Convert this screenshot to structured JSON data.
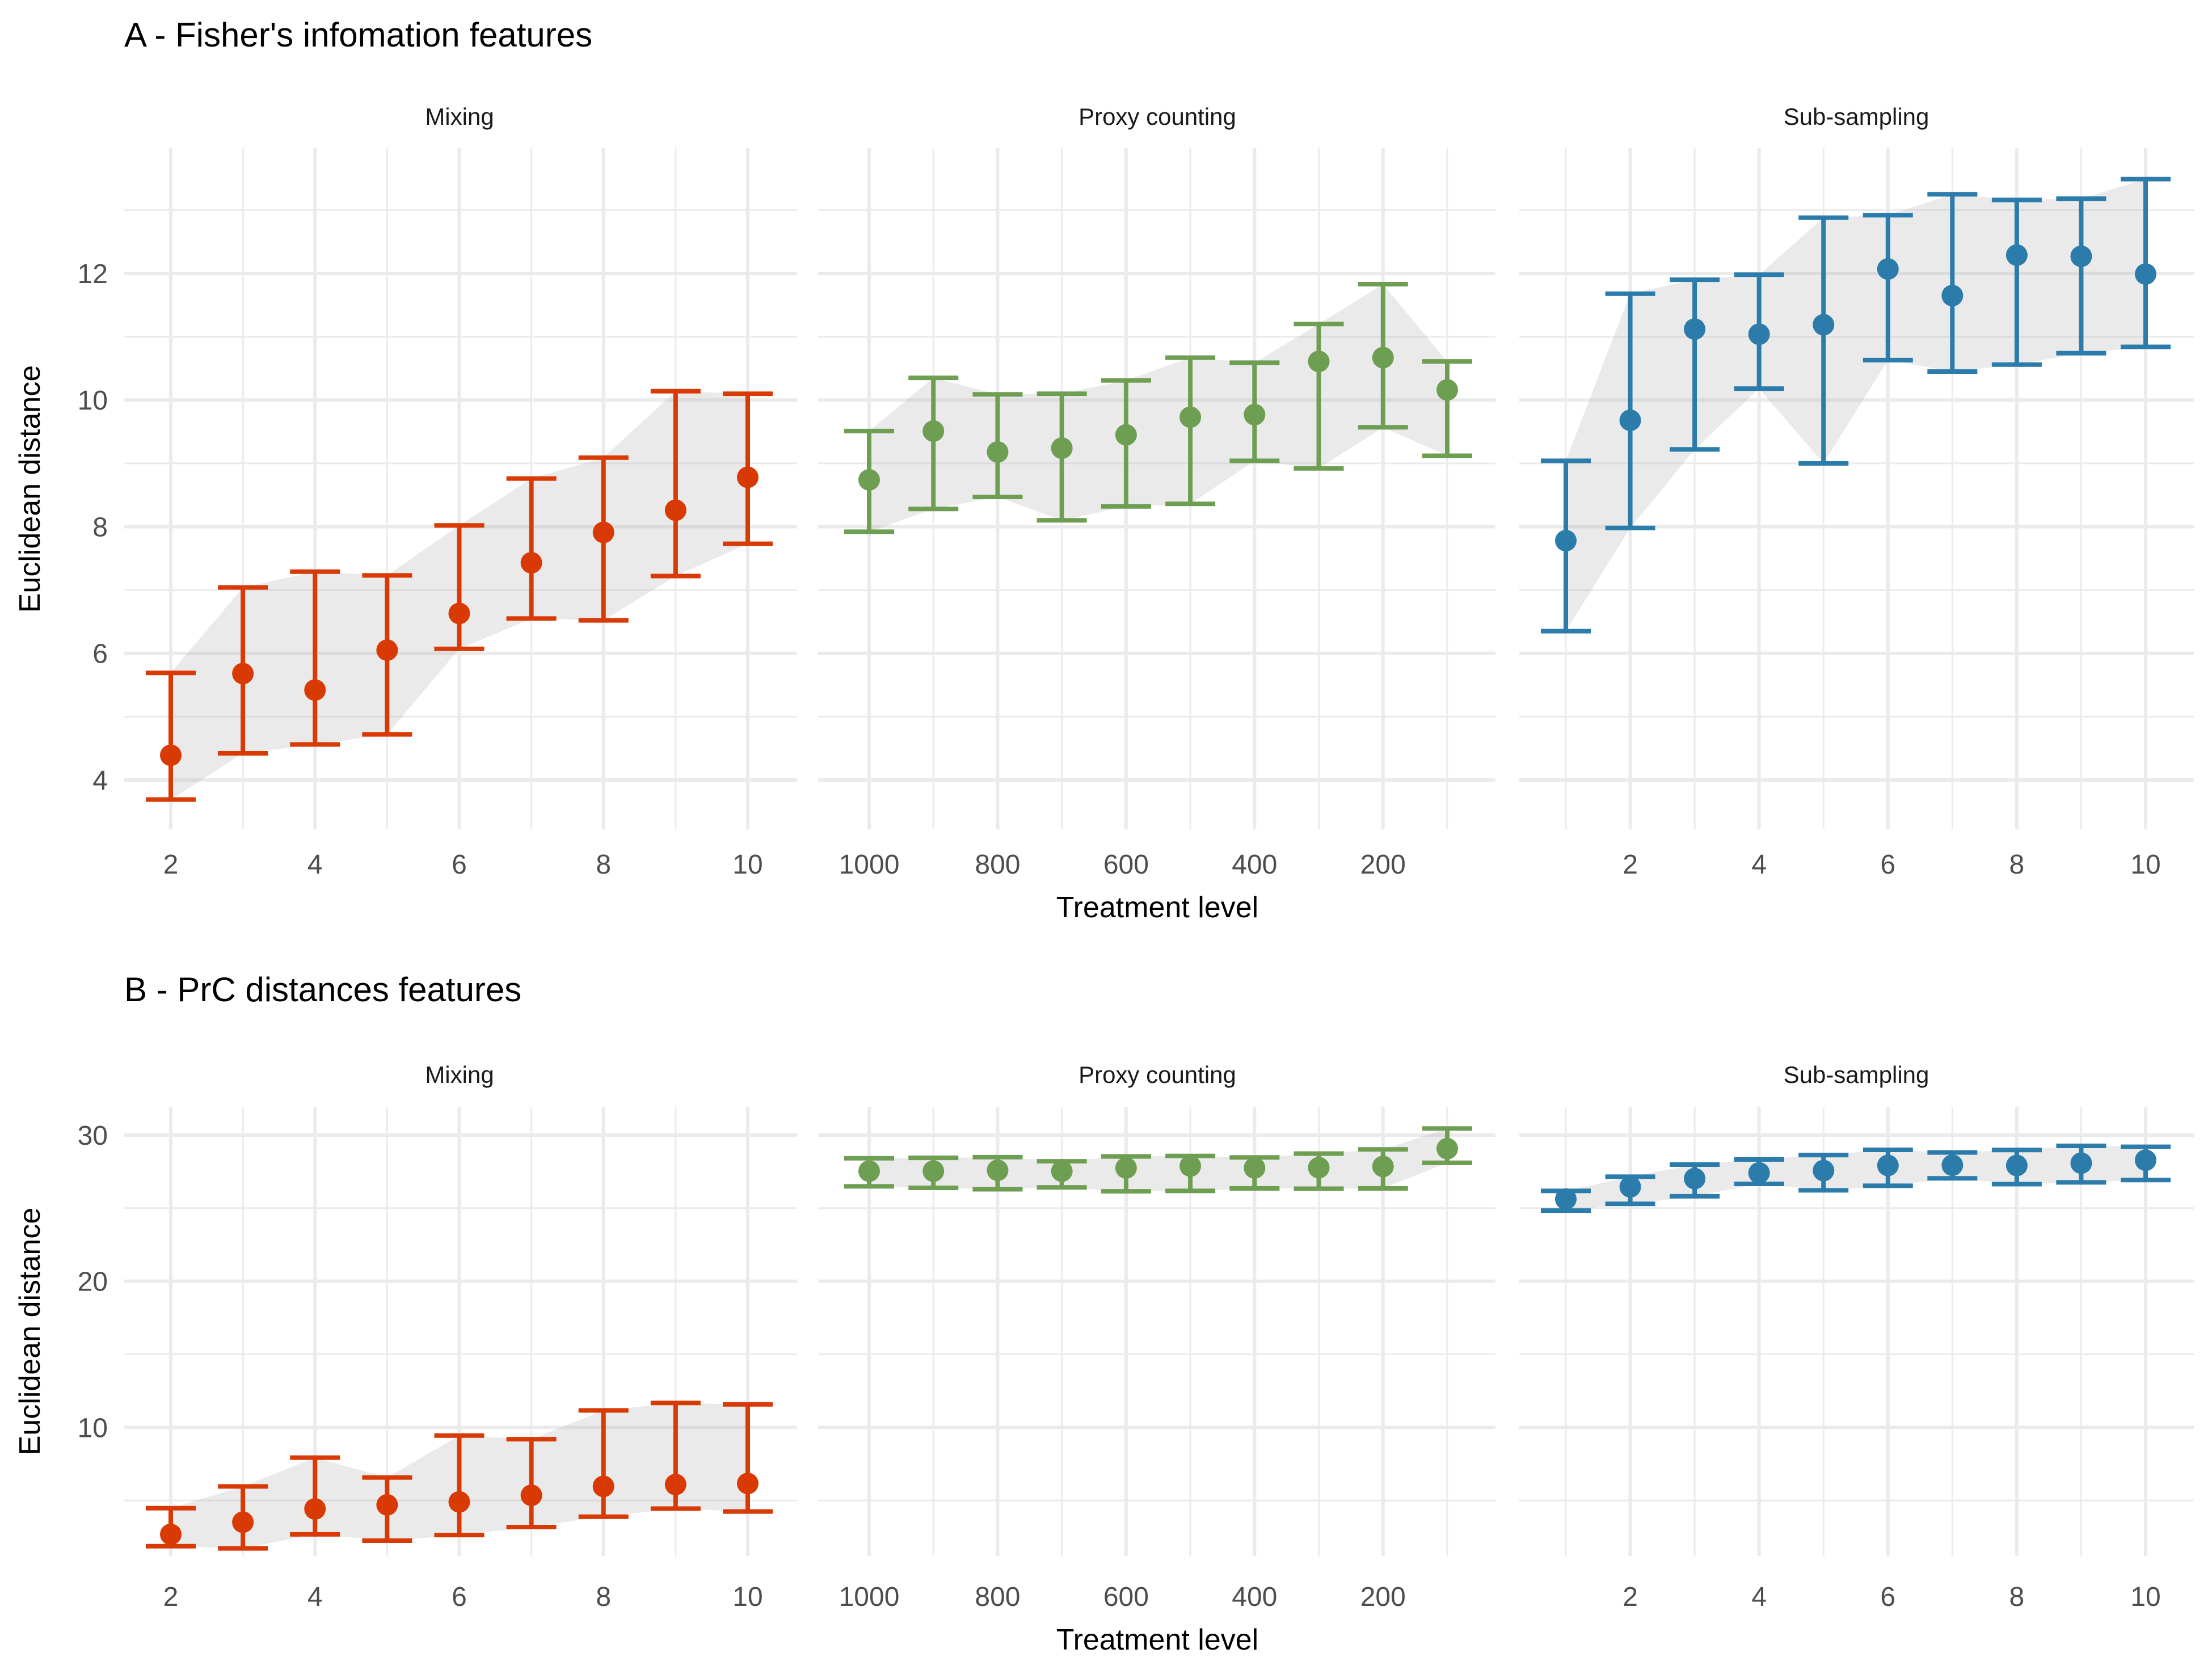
{
  "chart_data": [
    {
      "type": "scatter",
      "title": "A - Fisher's infomation features",
      "ylabel": "Euclidean distance",
      "xlabel": "Treatment level",
      "ylim": [
        3.22,
        13.98
      ],
      "yticks": [
        4,
        6,
        8,
        10,
        12
      ],
      "grid": true,
      "error_bars": true,
      "ribbon": true,
      "facets": [
        {
          "name": "Mixing",
          "color": "#D93A04",
          "x": [
            2,
            3,
            4,
            5,
            6,
            7,
            8,
            9,
            10
          ],
          "xticks": [
            2,
            4,
            6,
            8,
            10
          ],
          "mean": [
            4.39,
            5.68,
            5.42,
            6.05,
            6.63,
            7.43,
            7.91,
            8.26,
            8.78
          ],
          "upper": [
            5.69,
            7.04,
            7.29,
            7.23,
            8.02,
            8.76,
            9.09,
            10.14,
            10.1
          ],
          "lower": [
            3.69,
            4.42,
            4.56,
            4.72,
            6.07,
            6.55,
            6.52,
            7.22,
            7.73
          ]
        },
        {
          "name": "Proxy counting",
          "color": "#6E9E52",
          "x": [
            1000,
            900,
            800,
            700,
            600,
            500,
            400,
            300,
            200,
            100
          ],
          "xticks": [
            1000,
            800,
            600,
            400,
            200
          ],
          "mean": [
            8.74,
            9.51,
            9.18,
            9.24,
            9.45,
            9.73,
            9.77,
            10.61,
            10.67,
            10.16
          ],
          "upper": [
            9.51,
            10.35,
            10.09,
            10.1,
            10.31,
            10.67,
            10.59,
            11.2,
            11.83,
            10.61
          ],
          "lower": [
            7.92,
            8.28,
            8.47,
            8.1,
            8.32,
            8.36,
            9.04,
            8.92,
            9.57,
            9.12
          ]
        },
        {
          "name": "Sub-sampling",
          "color": "#2B7BAB",
          "x": [
            1,
            2,
            3,
            4,
            5,
            6,
            7,
            8,
            9,
            10
          ],
          "xticks": [
            2,
            4,
            6,
            8,
            10
          ],
          "mean": [
            7.78,
            9.68,
            11.12,
            11.04,
            11.19,
            12.07,
            11.65,
            12.29,
            12.27,
            11.99
          ],
          "upper": [
            9.04,
            11.68,
            11.9,
            11.98,
            12.88,
            12.92,
            13.25,
            13.16,
            13.18,
            13.49
          ],
          "lower": [
            6.35,
            7.98,
            9.22,
            10.18,
            9.0,
            10.63,
            10.45,
            10.56,
            10.74,
            10.84
          ]
        }
      ]
    },
    {
      "type": "scatter",
      "title": "B - PrC distances features",
      "ylabel": "Euclidean distance",
      "xlabel": "Treatment level",
      "ylim": [
        1.2,
        31.9
      ],
      "yticks": [
        10,
        20,
        30
      ],
      "grid": true,
      "error_bars": true,
      "ribbon": true,
      "facets": [
        {
          "name": "Mixing",
          "color": "#D93A04",
          "x": [
            2,
            3,
            4,
            5,
            6,
            7,
            8,
            9,
            10
          ],
          "xticks": [
            2,
            4,
            6,
            8,
            10
          ],
          "mean": [
            2.68,
            3.51,
            4.42,
            4.7,
            4.9,
            5.35,
            5.96,
            6.09,
            6.16
          ],
          "upper": [
            4.47,
            5.96,
            7.93,
            6.57,
            9.44,
            9.19,
            11.16,
            11.67,
            11.57
          ],
          "lower": [
            1.87,
            1.72,
            2.68,
            2.25,
            2.63,
            3.18,
            3.89,
            4.44,
            4.24
          ]
        },
        {
          "name": "Proxy counting",
          "color": "#6E9E52",
          "x": [
            1000,
            900,
            800,
            700,
            600,
            500,
            400,
            300,
            200,
            100
          ],
          "xticks": [
            1000,
            800,
            600,
            400,
            200
          ],
          "mean": [
            27.53,
            27.53,
            27.59,
            27.53,
            27.75,
            27.88,
            27.75,
            27.77,
            27.85,
            29.07
          ],
          "upper": [
            28.41,
            28.44,
            28.49,
            28.21,
            28.54,
            28.57,
            28.47,
            28.73,
            29.02,
            30.45
          ],
          "lower": [
            26.49,
            26.39,
            26.29,
            26.42,
            26.15,
            26.18,
            26.35,
            26.33,
            26.35,
            28.1
          ]
        },
        {
          "name": "Sub-sampling",
          "color": "#2B7BAB",
          "x": [
            1,
            2,
            3,
            4,
            5,
            6,
            7,
            8,
            9,
            10
          ],
          "xticks": [
            2,
            4,
            6,
            8,
            10
          ],
          "mean": [
            25.62,
            26.46,
            27.02,
            27.41,
            27.57,
            27.92,
            27.94,
            27.92,
            28.08,
            28.28
          ],
          "upper": [
            26.18,
            27.15,
            27.98,
            28.33,
            28.63,
            28.99,
            28.81,
            28.98,
            29.26,
            29.2
          ],
          "lower": [
            24.83,
            25.29,
            25.81,
            26.66,
            26.22,
            26.53,
            27.04,
            26.64,
            26.76,
            26.92
          ]
        }
      ]
    }
  ]
}
